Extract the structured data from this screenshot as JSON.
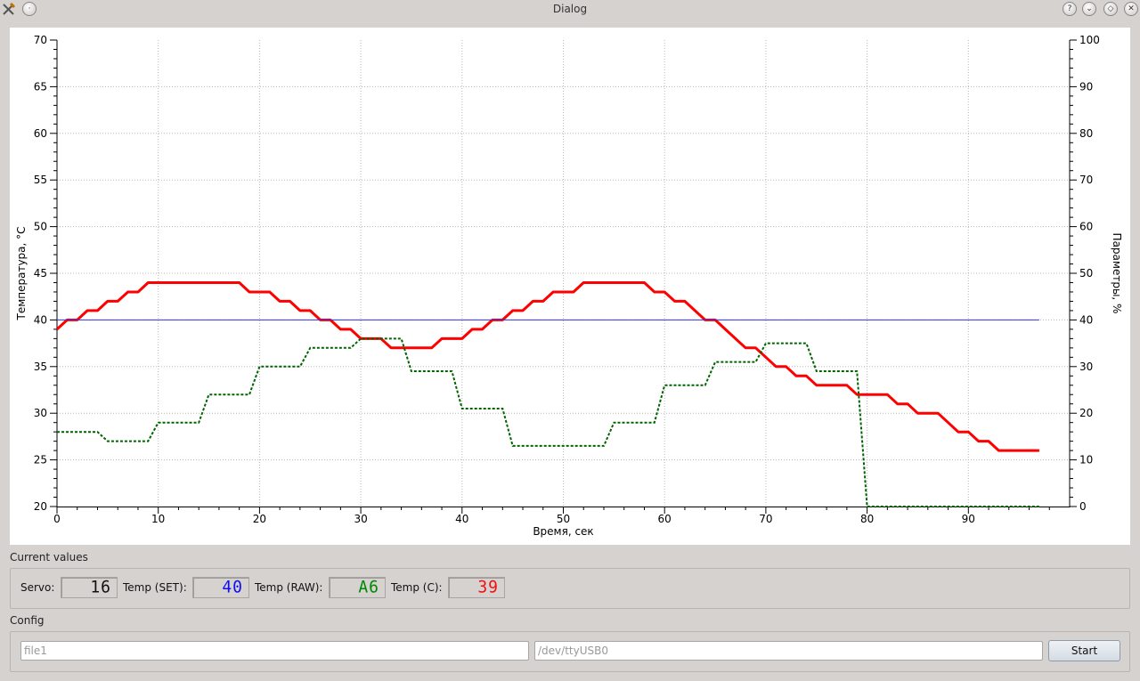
{
  "window": {
    "title": "Dialog",
    "buttons": [
      {
        "name": "help",
        "glyph": "?"
      },
      {
        "name": "minimize",
        "glyph": "⌄"
      },
      {
        "name": "maximize",
        "glyph": "◇"
      },
      {
        "name": "close",
        "glyph": "✕"
      }
    ]
  },
  "chart_data": {
    "type": "line",
    "xlabel": "Время, сек",
    "ylabel_left": "Температура, °C",
    "ylabel_right": "Параметры, %",
    "xlim": [
      0,
      100
    ],
    "ylim_left": [
      20,
      70
    ],
    "ylim_right": [
      0,
      100
    ],
    "x_ticks": [
      0,
      10,
      20,
      30,
      40,
      50,
      60,
      70,
      80,
      90
    ],
    "y_ticks_left": [
      20,
      25,
      30,
      35,
      40,
      45,
      50,
      55,
      60,
      65,
      70
    ],
    "y_ticks_right": [
      0,
      10,
      20,
      30,
      40,
      50,
      60,
      70,
      80,
      90,
      100
    ],
    "grid": true,
    "series": [
      {
        "axis": "left",
        "color": "#ff0000",
        "style": "solid-thick",
        "points": [
          [
            0,
            39
          ],
          [
            1,
            40
          ],
          [
            2,
            40
          ],
          [
            3,
            41
          ],
          [
            4,
            41
          ],
          [
            5,
            42
          ],
          [
            6,
            42
          ],
          [
            7,
            43
          ],
          [
            8,
            43
          ],
          [
            9,
            44
          ],
          [
            18,
            44
          ],
          [
            19,
            43
          ],
          [
            21,
            43
          ],
          [
            22,
            42
          ],
          [
            23,
            42
          ],
          [
            24,
            41
          ],
          [
            25,
            41
          ],
          [
            26,
            40
          ],
          [
            27,
            40
          ],
          [
            28,
            39
          ],
          [
            29,
            39
          ],
          [
            30,
            38
          ],
          [
            32,
            38
          ],
          [
            33,
            37
          ],
          [
            37,
            37
          ],
          [
            38,
            38
          ],
          [
            40,
            38
          ],
          [
            41,
            39
          ],
          [
            42,
            39
          ],
          [
            43,
            40
          ],
          [
            44,
            40
          ],
          [
            45,
            41
          ],
          [
            46,
            41
          ],
          [
            47,
            42
          ],
          [
            48,
            42
          ],
          [
            49,
            43
          ],
          [
            51,
            43
          ],
          [
            52,
            44
          ],
          [
            58,
            44
          ],
          [
            59,
            43
          ],
          [
            60,
            43
          ],
          [
            61,
            42
          ],
          [
            62,
            42
          ],
          [
            63,
            41
          ],
          [
            64,
            40
          ],
          [
            65,
            40
          ],
          [
            66,
            39
          ],
          [
            67,
            38
          ],
          [
            68,
            37
          ],
          [
            69,
            37
          ],
          [
            70,
            36
          ],
          [
            71,
            35
          ],
          [
            72,
            35
          ],
          [
            73,
            34
          ],
          [
            74,
            34
          ],
          [
            75,
            33
          ],
          [
            78,
            33
          ],
          [
            79,
            32
          ],
          [
            82,
            32
          ],
          [
            83,
            31
          ],
          [
            84,
            31
          ],
          [
            85,
            30
          ],
          [
            87,
            30
          ],
          [
            88,
            29
          ],
          [
            89,
            28
          ],
          [
            90,
            28
          ],
          [
            91,
            27
          ],
          [
            92,
            27
          ],
          [
            93,
            26
          ],
          [
            97,
            26
          ]
        ]
      },
      {
        "axis": "left",
        "color": "#3333dd",
        "style": "solid-thin",
        "points": [
          [
            0,
            40
          ],
          [
            97,
            40
          ]
        ]
      },
      {
        "axis": "right",
        "color": "#006400",
        "style": "dashed",
        "points": [
          [
            0,
            16
          ],
          [
            4,
            16
          ],
          [
            5,
            14
          ],
          [
            9,
            14
          ],
          [
            10,
            18
          ],
          [
            14,
            18
          ],
          [
            15,
            24
          ],
          [
            19,
            24
          ],
          [
            20,
            30
          ],
          [
            24,
            30
          ],
          [
            25,
            34
          ],
          [
            29,
            34
          ],
          [
            30,
            36
          ],
          [
            34,
            36
          ],
          [
            35,
            29
          ],
          [
            39,
            29
          ],
          [
            40,
            21
          ],
          [
            44,
            21
          ],
          [
            45,
            13
          ],
          [
            54,
            13
          ],
          [
            55,
            18
          ],
          [
            59,
            18
          ],
          [
            60,
            26
          ],
          [
            64,
            26
          ],
          [
            65,
            31
          ],
          [
            69,
            31
          ],
          [
            70,
            35
          ],
          [
            74,
            35
          ],
          [
            75,
            29
          ],
          [
            79,
            29
          ],
          [
            80,
            0
          ],
          [
            97,
            0
          ]
        ]
      }
    ]
  },
  "current_values": {
    "title": "Current values",
    "servo_label": "Servo:",
    "servo_value": "16",
    "temp_set_label": "Temp (SET):",
    "temp_set_value": "40",
    "temp_raw_label": "Temp (RAW):",
    "temp_raw_value": "A6",
    "temp_c_label": "Temp (C):",
    "temp_c_value": "39",
    "colors": {
      "servo": "#111111",
      "temp_set": "#1010ee",
      "temp_raw": "#008800",
      "temp_c": "#ee1111"
    }
  },
  "config": {
    "title": "Config",
    "file_placeholder": "file1",
    "device_placeholder": "/dev/ttyUSB0",
    "start_label": "Start"
  }
}
